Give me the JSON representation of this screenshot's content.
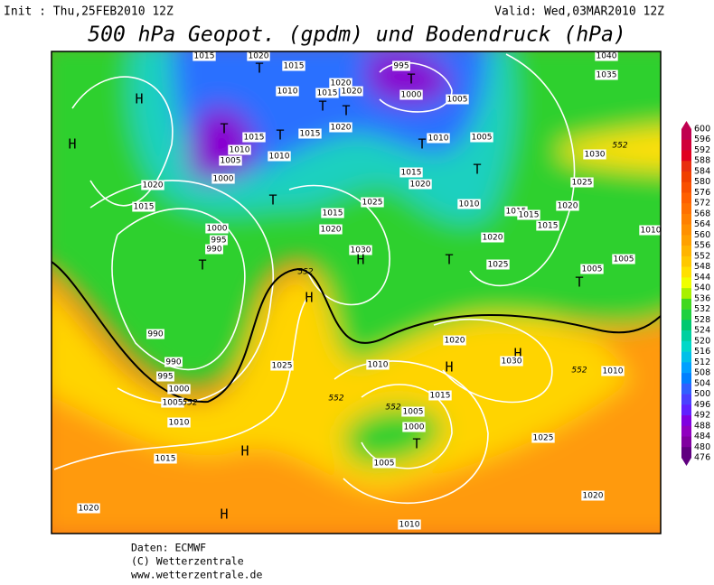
{
  "header": {
    "init": "Init : Thu,25FEB2010 12Z",
    "valid": "Valid: Wed,03MAR2010 12Z",
    "title": "500 hPa Geopot. (gpdm) und Bodendruck (hPa)"
  },
  "legend": {
    "labels": [
      "600",
      "596",
      "592",
      "588",
      "584",
      "580",
      "576",
      "572",
      "568",
      "564",
      "560",
      "556",
      "552",
      "548",
      "544",
      "540",
      "536",
      "532",
      "528",
      "524",
      "520",
      "516",
      "512",
      "508",
      "504",
      "500",
      "496",
      "492",
      "488",
      "484",
      "480",
      "476"
    ]
  },
  "map": {
    "labels": [
      "1015",
      "1020",
      "T",
      "1015",
      "995",
      "T",
      "1000",
      "1040",
      "1035",
      "H",
      "1010",
      "1015",
      "1020",
      "1020",
      "T",
      "T",
      "1005",
      "H",
      "T",
      "1015",
      "T",
      "1015",
      "1020",
      "1010",
      "T",
      "1005",
      "552",
      "1010",
      "1005",
      "1010",
      "1030",
      "T",
      "1015",
      "1020",
      "1000",
      "1020",
      "1025",
      "T",
      "1015",
      "1025",
      "1015",
      "1010",
      "1015",
      "1015",
      "1020",
      "1015",
      "1020",
      "1000",
      "995",
      "990",
      "1030",
      "H",
      "T",
      "T",
      "1020",
      "1010",
      "1025",
      "1005",
      "1005",
      "T",
      "552",
      "H",
      "990",
      "1020",
      "H",
      "1030",
      "H",
      "990",
      "1025",
      "1010",
      "552",
      "1010",
      "995",
      "1000",
      "552",
      "1015",
      "1005",
      "552",
      "552",
      "1005",
      "1010",
      "1000",
      "T",
      "H",
      "1015",
      "1025",
      "1005",
      "1020",
      "1020",
      "H",
      "1010"
    ]
  },
  "footer": {
    "lines": [
      "Daten: ECMWF",
      "(C) Wetterzentrale",
      "www.wetterzentrale.de"
    ]
  }
}
